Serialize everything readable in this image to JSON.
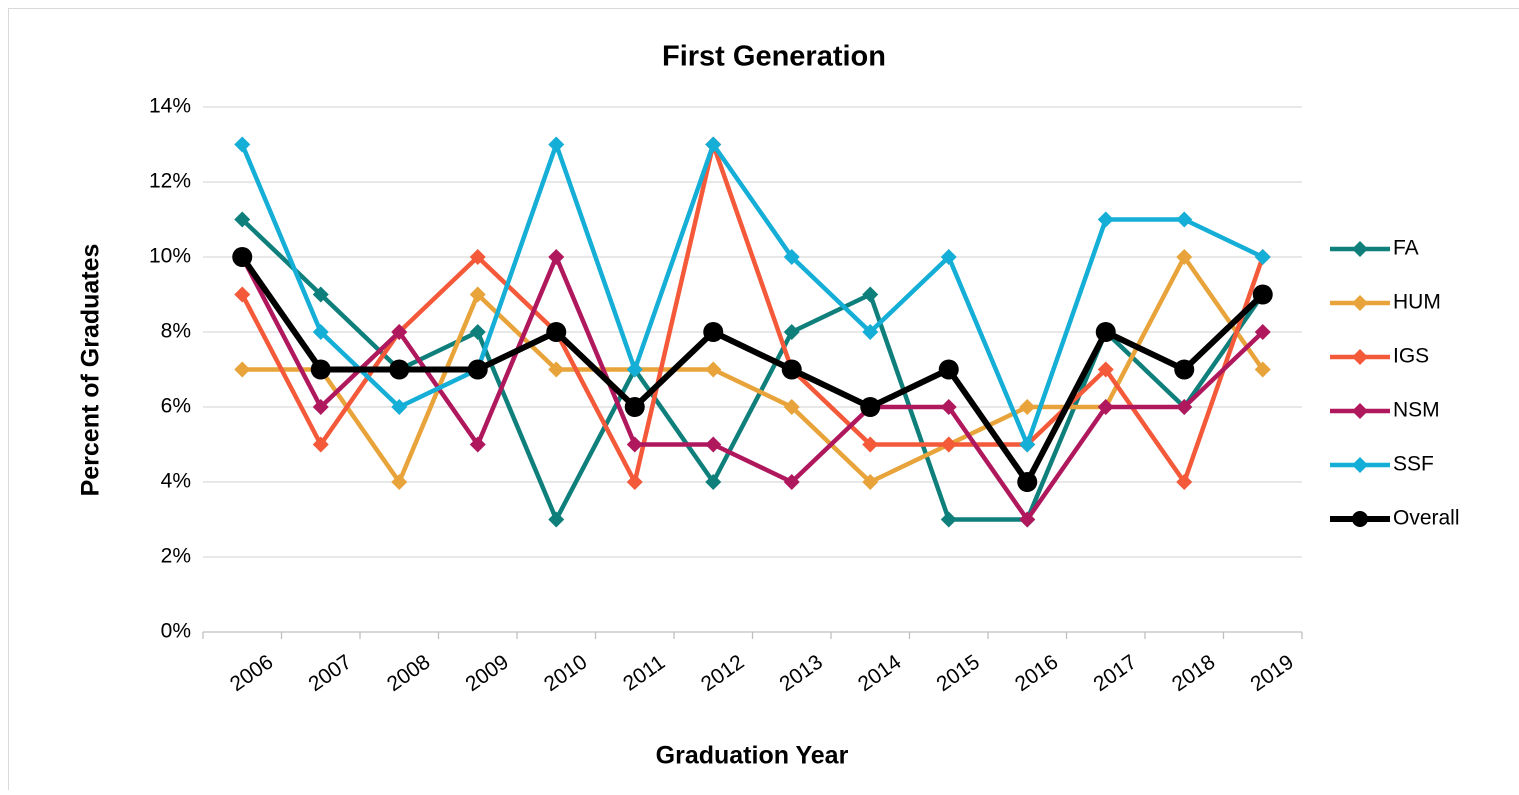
{
  "chart_data": {
    "type": "line",
    "title": "First Generation",
    "x_label": "Graduation Year",
    "y_label": "Percent of Graduates",
    "categories": [
      "2006",
      "2007",
      "2008",
      "2009",
      "2010",
      "2011",
      "2012",
      "2013",
      "2014",
      "2015",
      "2016",
      "2017",
      "2018",
      "2019"
    ],
    "series": [
      {
        "name": "FA",
        "color": "#0f7f7b",
        "marker": "diamond",
        "values": [
          11,
          9,
          7,
          8,
          3,
          7,
          4,
          8,
          9,
          3,
          3,
          8,
          6,
          9
        ]
      },
      {
        "name": "HUM",
        "color": "#e8a33a",
        "marker": "diamond",
        "values": [
          7,
          7,
          4,
          9,
          7,
          7,
          7,
          6,
          4,
          5,
          6,
          6,
          10,
          7
        ]
      },
      {
        "name": "IGS",
        "color": "#f4593a",
        "marker": "diamond",
        "values": [
          9,
          5,
          8,
          10,
          8,
          4,
          13,
          7,
          5,
          5,
          5,
          7,
          4,
          10
        ]
      },
      {
        "name": "NSM",
        "color": "#b0185e",
        "marker": "diamond",
        "values": [
          10,
          6,
          8,
          5,
          10,
          5,
          5,
          4,
          6,
          6,
          3,
          6,
          6,
          8
        ]
      },
      {
        "name": "SSF",
        "color": "#14aed6",
        "marker": "diamond",
        "values": [
          13,
          8,
          6,
          7,
          13,
          7,
          13,
          10,
          8,
          10,
          5,
          11,
          11,
          10
        ]
      },
      {
        "name": "Overall",
        "color": "#000000",
        "marker": "circle",
        "values": [
          10,
          7,
          7,
          7,
          8,
          6,
          8,
          7,
          6,
          7,
          4,
          8,
          7,
          9
        ]
      }
    ],
    "ylim": [
      0,
      14
    ],
    "yticks": [
      {
        "value": 0,
        "label": "0%"
      },
      {
        "value": 2,
        "label": "2%"
      },
      {
        "value": 4,
        "label": "4%"
      },
      {
        "value": 6,
        "label": "6%"
      },
      {
        "value": 8,
        "label": "8%"
      },
      {
        "value": 10,
        "label": "10%"
      },
      {
        "value": 12,
        "label": "12%"
      },
      {
        "value": 14,
        "label": "14%"
      }
    ],
    "grid": true,
    "legend": "right"
  }
}
